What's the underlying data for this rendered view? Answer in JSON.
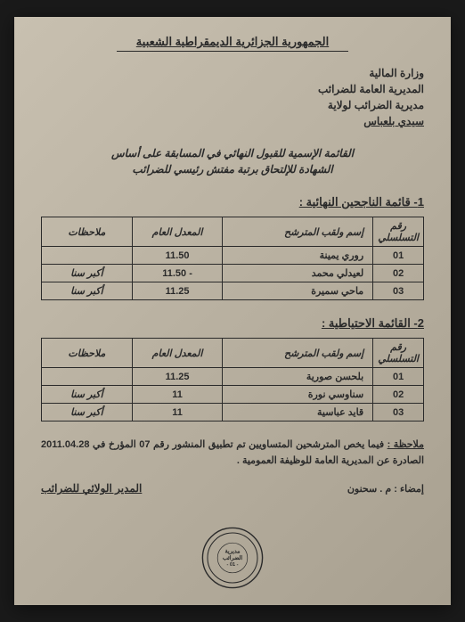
{
  "header": {
    "country": "الجمهورية الجزائرية الديمقراطية الشعبية",
    "ministry_lines": [
      "وزارة المالية",
      "المديرية العامة للضرائب",
      "مديرية الضرائب لولاية",
      "سيدي بلعباس"
    ],
    "title_line1": "القائمة الإسمية للقبول النهائي في المسابقة على أساس",
    "title_line2": "الشهادة للإلتحاق برتبة مفتش رئيسي للضرائب"
  },
  "section1": {
    "title": "1- قائمة الناجحين النهائية :",
    "headers": [
      "رقم التسلسلي",
      "إسم ولقب المترشح",
      "المعدل العام",
      "ملاحظات"
    ],
    "rows": [
      {
        "num": "01",
        "name": "روري يمينة",
        "avg": "11.50",
        "note": ""
      },
      {
        "num": "02",
        "name": "لعيدلي محمد",
        "avg": "- 11.50",
        "note": "أكبر سنا"
      },
      {
        "num": "03",
        "name": "ماحي سميرة",
        "avg": "11.25",
        "note": "أكبر سنا"
      }
    ]
  },
  "section2": {
    "title": "2- القائمة الاحتياطية :",
    "headers": [
      "رقم التسلسلي",
      "إسم ولقب المترشح",
      "المعدل العام",
      "ملاحظات"
    ],
    "rows": [
      {
        "num": "01",
        "name": "بلحسن صورية",
        "avg": "11.25",
        "note": ""
      },
      {
        "num": "02",
        "name": "سناوسي نورة",
        "avg": "11",
        "note": "أكبر سنا"
      },
      {
        "num": "03",
        "name": "قايد عباسية",
        "avg": "11",
        "note": "أكبر سنا"
      }
    ]
  },
  "note": {
    "label": "ملاحظة :",
    "text": "فيما يخص المترشحين المتساويين تم تطبيق المنشور رقم 07 المؤرخ في 2011.04.28 الصادرة عن المديرية العامة للوظيفة العمومية ."
  },
  "signature": {
    "director": "المدير الولائي للضرائب",
    "sign_label": "إمضاء : م . سحنون"
  },
  "stamp": {
    "line1": "مديرية",
    "line2": "الضرائب",
    "line3": "- 01 -"
  },
  "colors": {
    "page_bg": "#b8b0a0",
    "text": "#2a2a2a",
    "border": "#2a2a2a"
  }
}
